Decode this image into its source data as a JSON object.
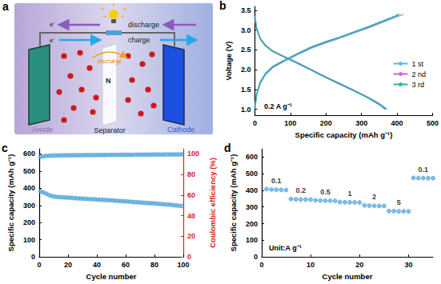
{
  "diagram": {
    "panel_label": "a",
    "electron": "e⁻",
    "discharge_label": "discharge",
    "charge_label": "charge",
    "ion_flow_label": "discharge",
    "separator_text": "N",
    "separator": "Separator",
    "anode": "Anode",
    "cathode": "Cathode"
  },
  "chart_data": [
    {
      "panel_label": "b",
      "type": "line",
      "xlabel": "Specific capacity (mAh g⁻¹)",
      "ylabel": "Voltage (V)",
      "annotation": "0.2 A g⁻¹",
      "xlim": [
        0,
        500
      ],
      "xticks": [
        0,
        100,
        200,
        300,
        400,
        500
      ],
      "ylim": [
        0.85,
        3.6
      ],
      "yticks": [
        {
          "value": 1,
          "label": "1.0"
        },
        {
          "value": 1.5,
          "label": "1.5"
        },
        {
          "value": 2,
          "label": "2.0"
        },
        {
          "value": 2.5,
          "label": "2.5"
        },
        {
          "value": 3,
          "label": "3.0"
        },
        {
          "value": 3.5,
          "label": "3.5"
        }
      ],
      "grid": false,
      "legend": "right",
      "series": [
        {
          "name": "1 st",
          "color": "#5bb8ea",
          "x": [
            0,
            5,
            15,
            30,
            50,
            80,
            120,
            160,
            200,
            240,
            280,
            320,
            360,
            400,
            418,
            null,
            0,
            5,
            15,
            30,
            50,
            80,
            120,
            160,
            200,
            240,
            280,
            320,
            350,
            365,
            372
          ],
          "values": [
            1.02,
            1.35,
            1.65,
            1.88,
            2.05,
            2.2,
            2.38,
            2.55,
            2.68,
            2.8,
            2.93,
            3.06,
            3.2,
            3.34,
            3.4,
            null,
            3.35,
            3.05,
            2.8,
            2.62,
            2.48,
            2.35,
            2.18,
            2.0,
            1.82,
            1.65,
            1.48,
            1.3,
            1.15,
            1.05,
            1.0
          ]
        },
        {
          "name": "2 nd",
          "color": "#d85ed8",
          "x": [
            0,
            5,
            15,
            30,
            50,
            80,
            120,
            160,
            200,
            240,
            280,
            320,
            360,
            395,
            407,
            null,
            0,
            5,
            15,
            30,
            50,
            80,
            120,
            160,
            200,
            240,
            280,
            320,
            348,
            362,
            368
          ],
          "values": [
            1.03,
            1.38,
            1.68,
            1.9,
            2.07,
            2.22,
            2.4,
            2.57,
            2.7,
            2.82,
            2.95,
            3.08,
            3.22,
            3.35,
            3.4,
            null,
            3.34,
            3.04,
            2.79,
            2.61,
            2.47,
            2.34,
            2.17,
            1.99,
            1.81,
            1.64,
            1.47,
            1.29,
            1.14,
            1.05,
            1.0
          ]
        },
        {
          "name": "3 rd",
          "color": "#2ab3a3",
          "x": [
            0,
            5,
            15,
            30,
            50,
            80,
            120,
            160,
            200,
            240,
            280,
            320,
            360,
            393,
            404,
            null,
            0,
            5,
            15,
            30,
            50,
            80,
            120,
            160,
            200,
            240,
            280,
            320,
            346,
            360,
            366
          ],
          "values": [
            1.03,
            1.39,
            1.69,
            1.91,
            2.08,
            2.23,
            2.41,
            2.58,
            2.71,
            2.83,
            2.96,
            3.09,
            3.23,
            3.35,
            3.4,
            null,
            3.34,
            3.03,
            2.78,
            2.6,
            2.46,
            2.33,
            2.16,
            1.98,
            1.8,
            1.63,
            1.46,
            1.28,
            1.14,
            1.05,
            1.0
          ]
        }
      ]
    },
    {
      "panel_label": "c",
      "type": "scatter",
      "xlabel": "Cycle number",
      "ylabel": "Specific capacity (mAh g⁻¹)",
      "y2label": "Coulombic efficiency (%)",
      "xlim": [
        0,
        100
      ],
      "xticks": [
        0,
        20,
        40,
        60,
        80,
        100
      ],
      "ylim": [
        0,
        630
      ],
      "yticks": [
        0,
        100,
        200,
        300,
        400,
        500,
        600
      ],
      "y2lim": [
        0,
        105
      ],
      "y2ticks": [
        0,
        20,
        40,
        60,
        80,
        100
      ],
      "grid": false,
      "series": [
        {
          "name": "Specific capacity",
          "color": "#5ab4e6",
          "marker": "circle",
          "x": [
            1,
            3,
            5,
            7,
            9,
            11,
            13,
            15,
            17,
            19,
            21,
            23,
            25,
            27,
            29,
            31,
            33,
            35,
            37,
            39,
            41,
            43,
            45,
            47,
            49,
            51,
            53,
            55,
            57,
            59,
            61,
            63,
            65,
            67,
            69,
            71,
            73,
            75,
            77,
            79,
            81,
            83,
            85,
            87,
            89,
            91,
            93,
            95,
            97,
            99
          ],
          "values": [
            382,
            376,
            368,
            360,
            354,
            351,
            349,
            348,
            347,
            346,
            345,
            344,
            342,
            341,
            340,
            339,
            338,
            337,
            336,
            335,
            334,
            333,
            332,
            331,
            330,
            329,
            328,
            326,
            325,
            324,
            323,
            322,
            320,
            319,
            318,
            317,
            315,
            314,
            313,
            312,
            311,
            309,
            308,
            306,
            305,
            304,
            302,
            300,
            298,
            296
          ]
        },
        {
          "name": "Coulombic efficiency",
          "color": "#5ab4e6",
          "marker": "circle",
          "axis": "y2",
          "x": [
            1,
            3,
            5,
            7,
            9,
            11,
            13,
            15,
            17,
            19,
            21,
            23,
            25,
            27,
            29,
            31,
            33,
            35,
            37,
            39,
            41,
            43,
            45,
            47,
            49,
            51,
            53,
            55,
            57,
            59,
            61,
            63,
            65,
            67,
            69,
            71,
            73,
            75,
            77,
            79,
            81,
            83,
            85,
            87,
            89,
            91,
            93,
            95,
            97,
            99
          ],
          "values": [
            97.2,
            97.8,
            98.1,
            98.3,
            98.4,
            98.5,
            98.5,
            98.6,
            98.6,
            98.7,
            98.7,
            98.7,
            98.8,
            98.8,
            98.8,
            98.9,
            98.9,
            98.9,
            98.9,
            99.0,
            99.0,
            99.0,
            99.0,
            99.1,
            99.1,
            99.1,
            99.1,
            99.1,
            99.2,
            99.2,
            99.2,
            99.2,
            99.2,
            99.3,
            99.3,
            99.3,
            99.3,
            99.3,
            99.4,
            99.4,
            99.4,
            99.4,
            99.4,
            99.5,
            99.5,
            99.5,
            99.5,
            99.5,
            99.6,
            99.6
          ]
        }
      ]
    },
    {
      "panel_label": "d",
      "type": "scatter",
      "xlabel": "Cycle number",
      "ylabel": "Specific capacity (mAh g⁻¹)",
      "annotation": "Unit:A g⁻¹",
      "xlim": [
        0,
        35
      ],
      "xticks": [
        0,
        10,
        20,
        30
      ],
      "ylim": [
        0,
        650
      ],
      "yticks": [
        0,
        100,
        200,
        300,
        400,
        500,
        600
      ],
      "grid": false,
      "series": [
        {
          "name": "Specific capacity",
          "color": "#5ab4e6",
          "marker": "circle",
          "x": [
            1,
            2,
            3,
            4,
            5,
            6,
            7,
            8,
            9,
            10,
            11,
            12,
            13,
            14,
            15,
            16,
            17,
            18,
            19,
            20,
            21,
            22,
            23,
            24,
            25,
            26,
            27,
            28,
            29,
            30,
            31,
            32,
            33,
            34,
            35
          ],
          "values": [
            408,
            405,
            404,
            403,
            402,
            348,
            346,
            345,
            345,
            344,
            340,
            339,
            338,
            338,
            337,
            330,
            329,
            328,
            328,
            327,
            310,
            308,
            307,
            306,
            306,
            276,
            275,
            274,
            274,
            273,
            475,
            474,
            474,
            473,
            473
          ]
        }
      ],
      "groups": [
        {
          "label": "0.1",
          "start": 1,
          "end": 5
        },
        {
          "label": "0.2",
          "start": 6,
          "end": 10
        },
        {
          "label": "0.5",
          "start": 11,
          "end": 15
        },
        {
          "label": "1",
          "start": 16,
          "end": 20
        },
        {
          "label": "2",
          "start": 21,
          "end": 25
        },
        {
          "label": "5",
          "start": 26,
          "end": 30
        },
        {
          "label": "0.1",
          "start": 31,
          "end": 35
        }
      ]
    }
  ]
}
